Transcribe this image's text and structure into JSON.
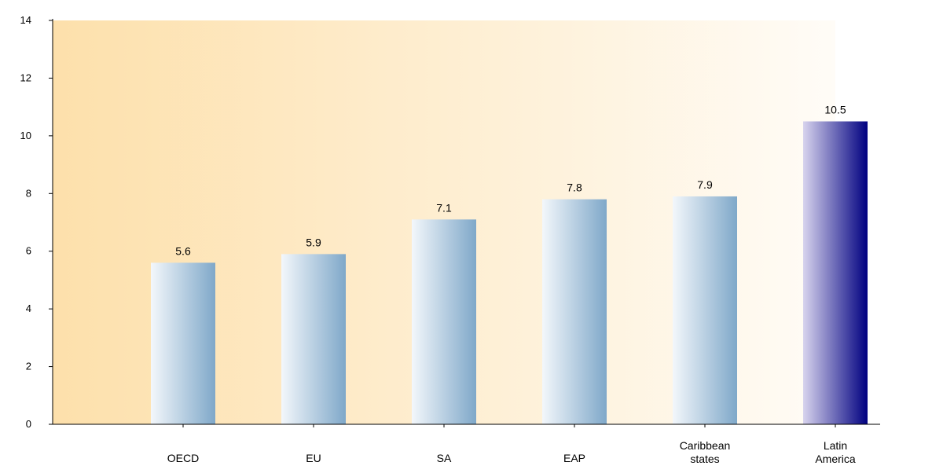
{
  "chart_data": {
    "type": "bar",
    "title": "",
    "xlabel": "",
    "ylabel": "",
    "ylim": [
      0,
      14
    ],
    "yticks": [
      0,
      2,
      4,
      6,
      8,
      10,
      12,
      14
    ],
    "categories": [
      [
        "OECD"
      ],
      [
        "EU"
      ],
      [
        "SA"
      ],
      [
        "EAP"
      ],
      [
        "Caribbean",
        "states"
      ],
      [
        "Latin",
        "America"
      ]
    ],
    "values": [
      5.6,
      5.9,
      7.1,
      7.8,
      7.9,
      10.5
    ],
    "value_labels": [
      "5.6",
      "5.9",
      "7.1",
      "7.8",
      "7.9",
      "10.5"
    ],
    "highlight_index": 5,
    "grid": false,
    "legend": "none",
    "colors": {
      "bar_light": "#f3f7fb",
      "bar_dark": "#7fa8c9",
      "highlight_light": "#d8d4ee",
      "highlight_dark": "#000080",
      "plot_bg_left": "#fde0ab",
      "plot_bg_right": "#fffcf7",
      "axis": "#000000"
    }
  }
}
